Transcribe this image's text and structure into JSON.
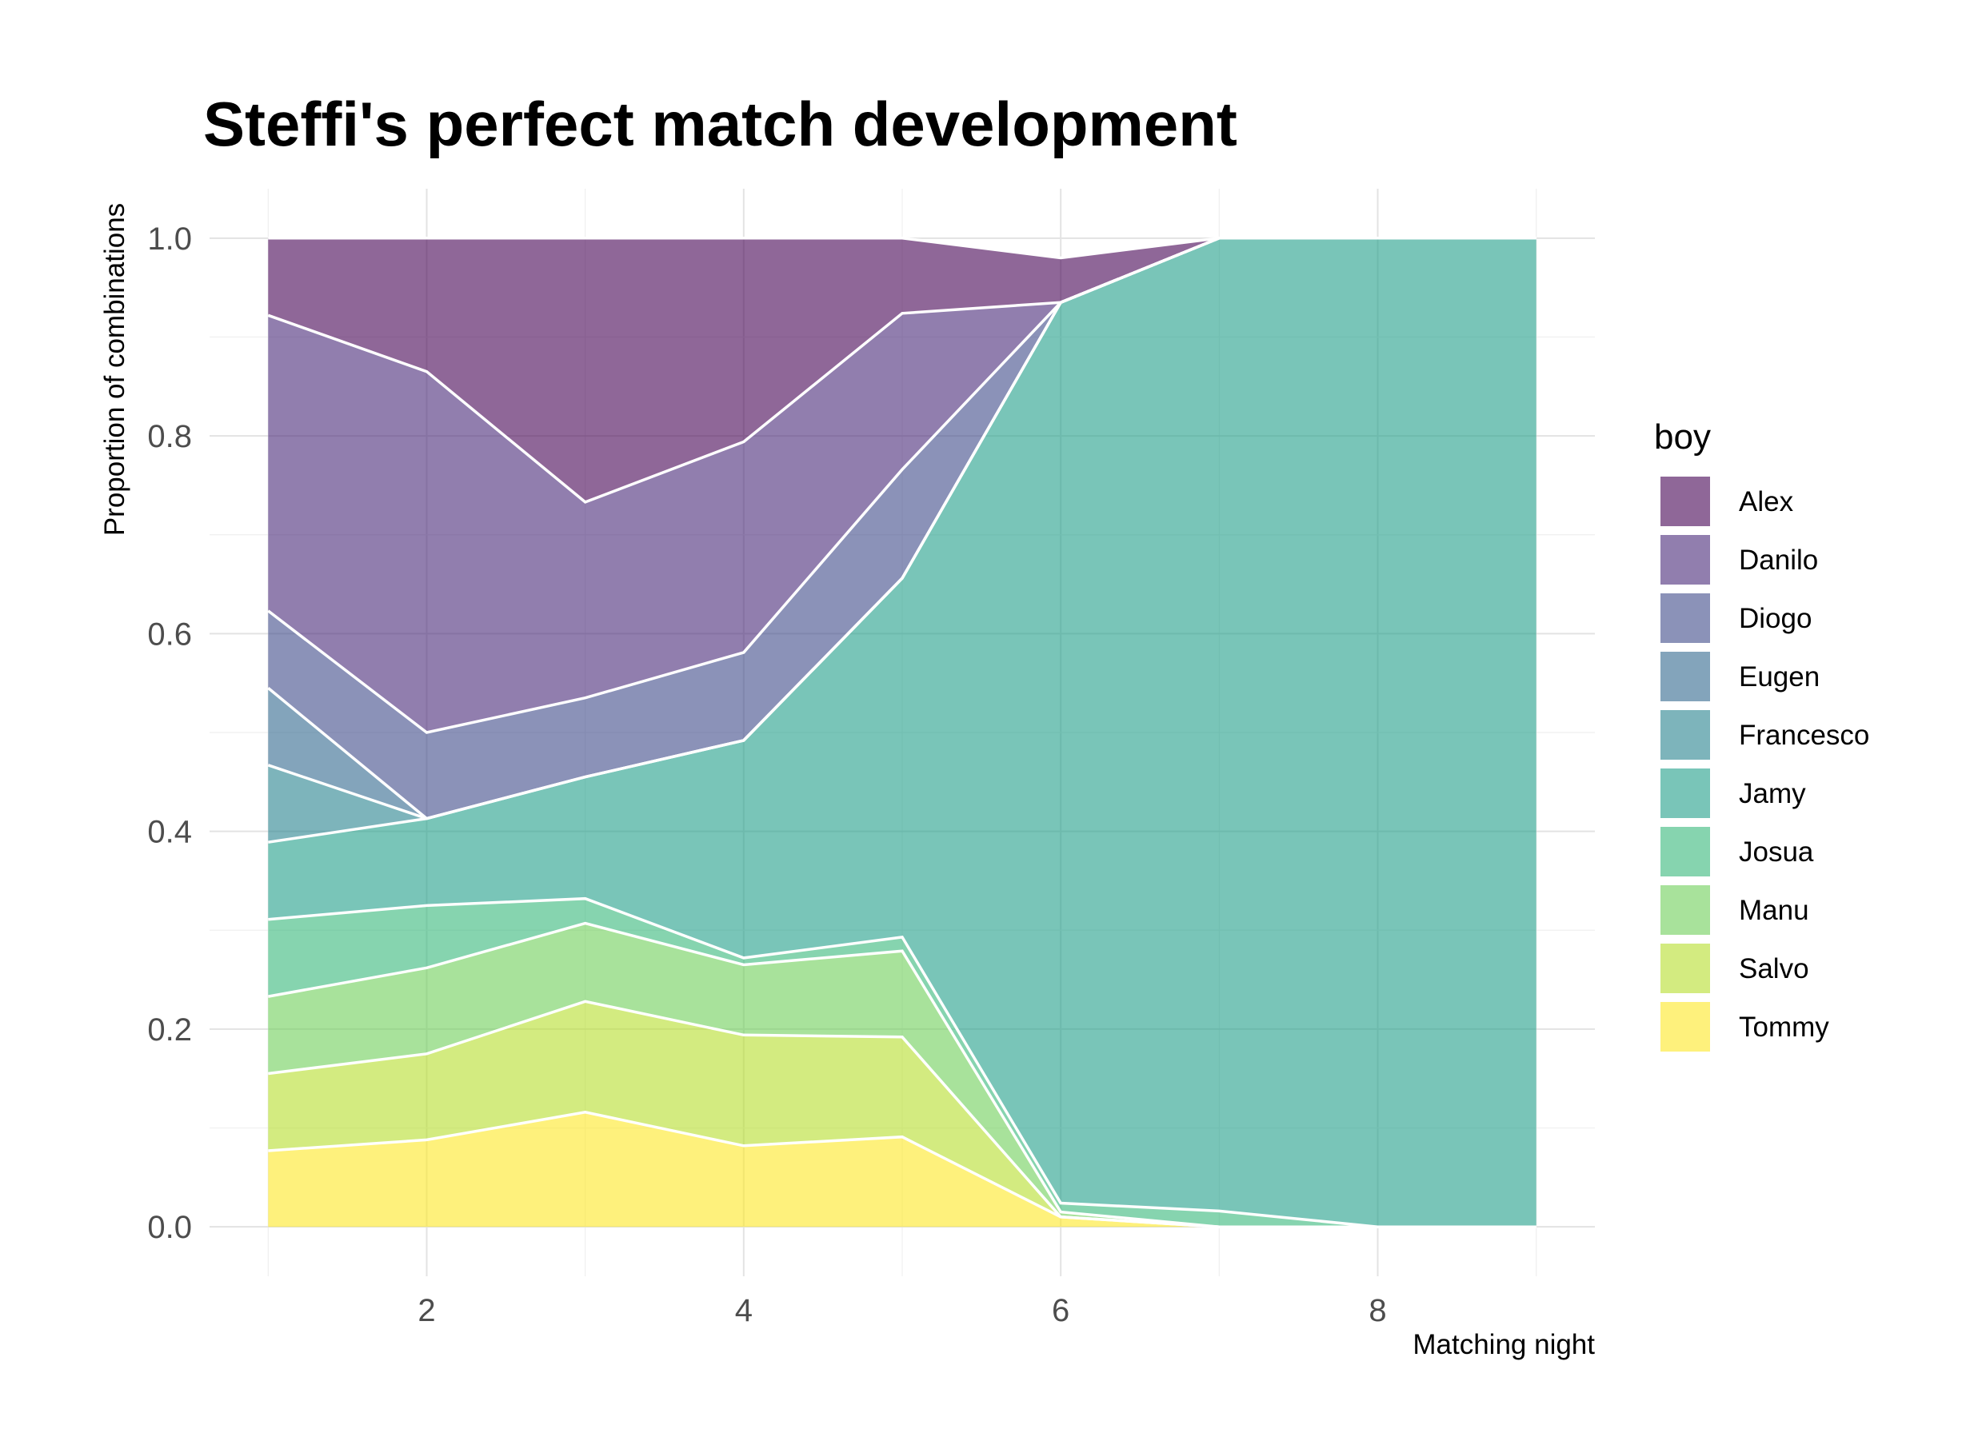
{
  "chart_data": {
    "type": "area",
    "stacked": true,
    "title": "Steffi's perfect match development",
    "xlabel": "Matching night",
    "ylabel": "Proportion of combinations",
    "xlim": [
      1,
      9
    ],
    "ylim": [
      0,
      1
    ],
    "x_ticks": [
      2,
      4,
      6,
      8
    ],
    "y_ticks": [
      "0.0",
      "0.2",
      "0.4",
      "0.6",
      "0.8",
      "1.0"
    ],
    "grid": true,
    "legend_title": "boy",
    "legend_position": "right",
    "x": [
      1,
      2,
      3,
      4,
      5,
      6,
      7,
      8,
      9
    ],
    "series": [
      {
        "name": "Tommy",
        "color": "#FDE725",
        "values": [
          0.077,
          0.088,
          0.116,
          0.082,
          0.091,
          0.01,
          0.0,
          0.0,
          0.0
        ]
      },
      {
        "name": "Salvo",
        "color": "#B5DE2B",
        "values": [
          0.078,
          0.087,
          0.112,
          0.112,
          0.101,
          0.0,
          0.0,
          0.0,
          0.0
        ]
      },
      {
        "name": "Manu",
        "color": "#6ECE58",
        "values": [
          0.078,
          0.087,
          0.079,
          0.071,
          0.087,
          0.005,
          0.0,
          0.0,
          0.0
        ]
      },
      {
        "name": "Josua",
        "color": "#35B779",
        "values": [
          0.078,
          0.063,
          0.025,
          0.007,
          0.014,
          0.009,
          0.016,
          0.0,
          0.0
        ]
      },
      {
        "name": "Jamy",
        "color": "#1F9E89",
        "values": [
          0.078,
          0.088,
          0.123,
          0.22,
          0.363,
          0.911,
          0.984,
          1.0,
          1.0
        ]
      },
      {
        "name": "Francesco",
        "color": "#26828E",
        "values": [
          0.078,
          0.0,
          0.0,
          0.0,
          0.0,
          0.0,
          0.0,
          0.0,
          0.0
        ]
      },
      {
        "name": "Eugen",
        "color": "#31688E",
        "values": [
          0.078,
          0.0,
          0.0,
          0.0,
          0.0,
          0.0,
          0.0,
          0.0,
          0.0
        ]
      },
      {
        "name": "Diogo",
        "color": "#3E4A89",
        "values": [
          0.078,
          0.087,
          0.08,
          0.089,
          0.11,
          0.0,
          0.0,
          0.0,
          0.0
        ]
      },
      {
        "name": "Danilo",
        "color": "#482878",
        "values": [
          0.299,
          0.365,
          0.198,
          0.213,
          0.158,
          0.0,
          0.0,
          0.0,
          0.0
        ]
      },
      {
        "name": "Alex",
        "color": "#440154",
        "values": [
          0.078,
          0.135,
          0.267,
          0.206,
          0.076,
          0.045,
          0.0,
          0.0,
          0.0
        ]
      }
    ],
    "alpha": 0.6
  }
}
